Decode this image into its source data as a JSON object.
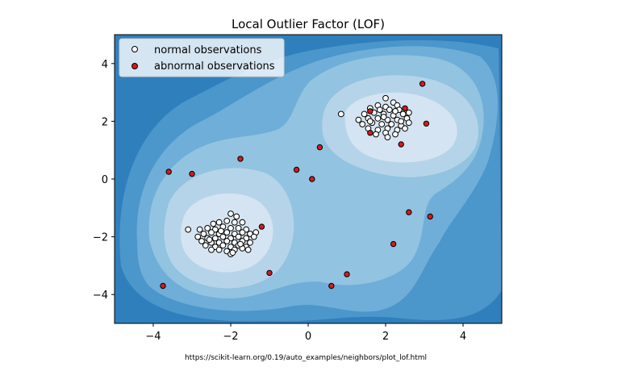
{
  "caption": "https://scikit-learn.org/0.19/auto_examples/neighbors/plot_lof.html",
  "chart_data": {
    "type": "scatter",
    "title": "Local Outlier Factor (LOF)",
    "xlabel": "",
    "ylabel": "",
    "xlim": [
      -5,
      5
    ],
    "ylim": [
      -5,
      5
    ],
    "xticks": [
      -4,
      -2,
      0,
      2,
      4
    ],
    "yticks": [
      -4,
      -2,
      0,
      2,
      4
    ],
    "xtick_labels": [
      "−4",
      "−2",
      "0",
      "2",
      "4"
    ],
    "ytick_labels": [
      "−4",
      "−2",
      "0",
      "2",
      "4"
    ],
    "grid": false,
    "legend_position": "top-left",
    "background": "contourf decision function (Blues colormap)",
    "colors": {
      "normal_face": "#ffffff",
      "abnormal_face": "#d7191c",
      "marker_edge": "#000000",
      "contour_levels": [
        "#2f7fbd",
        "#4b96cb",
        "#6eaed8",
        "#92c3e0",
        "#b6d4e9",
        "#d4e4f2"
      ]
    },
    "series": [
      {
        "name": "normal observations",
        "color": "#ffffff",
        "points": [
          [
            -2.0,
            -1.2
          ],
          [
            -1.85,
            -1.3
          ],
          [
            -2.45,
            -1.55
          ],
          [
            -2.3,
            -1.5
          ],
          [
            -2.1,
            -1.45
          ],
          [
            -1.9,
            -1.5
          ],
          [
            -1.7,
            -1.5
          ],
          [
            -2.6,
            -1.7
          ],
          [
            -2.4,
            -1.75
          ],
          [
            -2.2,
            -1.65
          ],
          [
            -2.0,
            -1.7
          ],
          [
            -1.8,
            -1.7
          ],
          [
            -1.6,
            -1.75
          ],
          [
            -2.8,
            -1.75
          ],
          [
            -2.7,
            -1.9
          ],
          [
            -2.5,
            -1.85
          ],
          [
            -2.3,
            -1.9
          ],
          [
            -2.1,
            -1.85
          ],
          [
            -1.9,
            -1.9
          ],
          [
            -1.7,
            -1.85
          ],
          [
            -1.5,
            -1.9
          ],
          [
            -1.35,
            -1.85
          ],
          [
            -2.85,
            -2.0
          ],
          [
            -2.6,
            -2.05
          ],
          [
            -2.4,
            -2.05
          ],
          [
            -2.2,
            -2.0
          ],
          [
            -2.0,
            -2.05
          ],
          [
            -1.8,
            -2.0
          ],
          [
            -1.6,
            -2.05
          ],
          [
            -1.4,
            -2.0
          ],
          [
            -2.75,
            -2.15
          ],
          [
            -2.5,
            -2.2
          ],
          [
            -2.3,
            -2.2
          ],
          [
            -2.1,
            -2.15
          ],
          [
            -1.9,
            -2.2
          ],
          [
            -1.7,
            -2.15
          ],
          [
            -1.5,
            -2.2
          ],
          [
            -2.65,
            -2.3
          ],
          [
            -2.4,
            -2.35
          ],
          [
            -2.2,
            -2.3
          ],
          [
            -2.0,
            -2.35
          ],
          [
            -1.8,
            -2.3
          ],
          [
            -1.6,
            -2.35
          ],
          [
            -2.5,
            -2.45
          ],
          [
            -2.3,
            -2.45
          ],
          [
            -2.1,
            -2.5
          ],
          [
            -1.9,
            -2.45
          ],
          [
            -1.7,
            -2.4
          ],
          [
            -2.0,
            -2.6
          ],
          [
            -1.95,
            -2.55
          ],
          [
            -1.55,
            -2.45
          ],
          [
            -2.55,
            -2.1
          ],
          [
            -2.25,
            -1.8
          ],
          [
            -1.75,
            -2.25
          ],
          [
            2.0,
            2.8
          ],
          [
            2.2,
            2.65
          ],
          [
            1.8,
            2.55
          ],
          [
            2.0,
            2.5
          ],
          [
            2.3,
            2.55
          ],
          [
            1.6,
            2.45
          ],
          [
            1.85,
            2.4
          ],
          [
            2.1,
            2.4
          ],
          [
            2.35,
            2.4
          ],
          [
            1.45,
            2.25
          ],
          [
            1.7,
            2.3
          ],
          [
            1.95,
            2.25
          ],
          [
            2.2,
            2.2
          ],
          [
            2.45,
            2.25
          ],
          [
            2.6,
            2.3
          ],
          [
            1.3,
            2.05
          ],
          [
            1.55,
            2.1
          ],
          [
            1.8,
            2.1
          ],
          [
            2.05,
            2.05
          ],
          [
            2.3,
            2.05
          ],
          [
            2.55,
            2.1
          ],
          [
            2.6,
            1.95
          ],
          [
            1.4,
            1.9
          ],
          [
            1.65,
            1.95
          ],
          [
            1.9,
            1.9
          ],
          [
            2.15,
            1.9
          ],
          [
            2.4,
            1.85
          ],
          [
            1.55,
            1.75
          ],
          [
            1.8,
            1.7
          ],
          [
            2.05,
            1.75
          ],
          [
            2.3,
            1.7
          ],
          [
            2.5,
            1.75
          ],
          [
            1.75,
            1.55
          ],
          [
            2.0,
            1.6
          ],
          [
            2.25,
            1.55
          ],
          [
            1.95,
            2.15
          ],
          [
            2.25,
            2.35
          ],
          [
            1.6,
            2.0
          ],
          [
            2.4,
            2.0
          ],
          [
            0.85,
            2.25
          ],
          [
            2.05,
            1.45
          ],
          [
            -3.1,
            -1.75
          ]
        ]
      },
      {
        "name": "abnormal observations",
        "color": "#d7191c",
        "points": [
          [
            2.95,
            3.3
          ],
          [
            1.6,
            2.35
          ],
          [
            2.5,
            2.45
          ],
          [
            3.05,
            1.92
          ],
          [
            1.6,
            1.6
          ],
          [
            2.4,
            1.2
          ],
          [
            0.3,
            1.1
          ],
          [
            -1.75,
            0.7
          ],
          [
            -3.6,
            0.25
          ],
          [
            -3.0,
            0.18
          ],
          [
            -0.3,
            0.32
          ],
          [
            0.1,
            0.0
          ],
          [
            -1.2,
            -1.65
          ],
          [
            2.6,
            -1.15
          ],
          [
            3.15,
            -1.3
          ],
          [
            2.2,
            -2.25
          ],
          [
            -1.0,
            -3.25
          ],
          [
            1.0,
            -3.3
          ],
          [
            0.6,
            -3.7
          ],
          [
            -3.75,
            -3.7
          ]
        ]
      }
    ]
  }
}
